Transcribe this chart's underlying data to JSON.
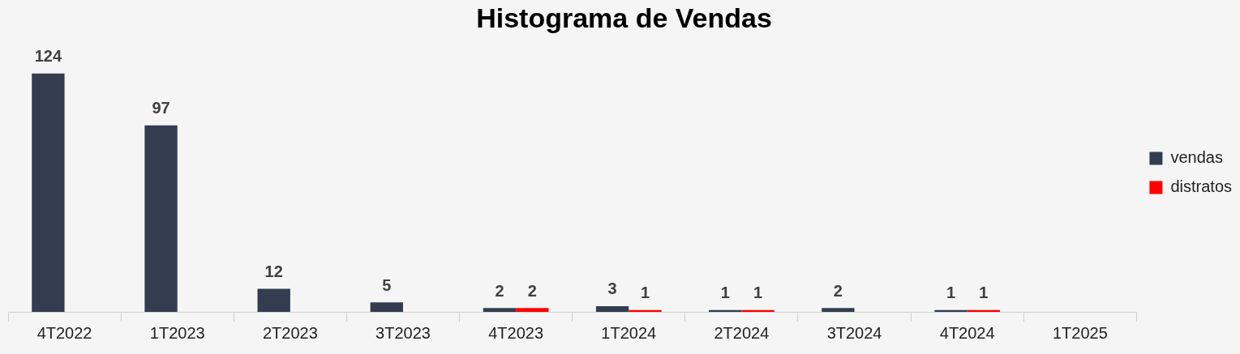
{
  "chart_data": {
    "type": "bar",
    "title": "Histograma de Vendas",
    "categories": [
      "4T2022",
      "1T2023",
      "2T2023",
      "3T2023",
      "4T2023",
      "1T2024",
      "2T2024",
      "3T2024",
      "4T2024",
      "1T2025"
    ],
    "series": [
      {
        "name": "vendas",
        "color": "#333d4f",
        "values": [
          124,
          97,
          12,
          5,
          2,
          3,
          1,
          2,
          1,
          null
        ]
      },
      {
        "name": "distratos",
        "color": "#ff0000",
        "values": [
          null,
          null,
          null,
          null,
          2,
          1,
          1,
          null,
          1,
          null
        ]
      }
    ],
    "data_labels": true,
    "legend": "right"
  }
}
